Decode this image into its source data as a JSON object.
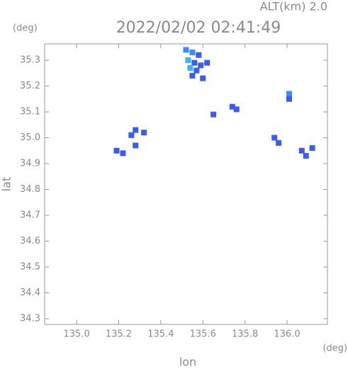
{
  "chart_data": {
    "type": "map",
    "title": "2022/02/02 02:41:49",
    "subtitle": "ALT(km) 2.0",
    "xlabel": "lon",
    "ylabel": "lat",
    "xunit": "(deg)",
    "yunit": "(deg)",
    "xlim": [
      134.848,
      136.192
    ],
    "ylim": [
      34.278,
      35.363
    ],
    "xticks": [
      {
        "value": 135.0,
        "label": "135.0"
      },
      135.2,
      135.4,
      135.6,
      135.8,
      {
        "value": 136.0,
        "label": "136.0"
      }
    ],
    "yticks": [
      34.3,
      34.4,
      34.5,
      34.6,
      34.7,
      34.8,
      34.9,
      {
        "value": 35.0,
        "label": "35.0"
      },
      35.1,
      35.2,
      35.3
    ],
    "x": [
      135.52,
      135.55,
      135.58,
      135.53,
      135.56,
      135.59,
      135.54,
      135.57,
      135.55,
      135.6,
      135.62,
      135.74,
      135.76,
      135.65,
      136.01,
      136.01,
      135.94,
      135.96,
      136.07,
      136.09,
      136.12,
      135.28,
      135.32,
      135.26,
      135.19,
      135.22,
      135.28
    ],
    "values": [
      35.34,
      35.33,
      35.32,
      35.3,
      35.29,
      35.28,
      35.27,
      35.26,
      35.24,
      35.23,
      35.29,
      35.12,
      35.11,
      35.09,
      35.17,
      35.15,
      35.0,
      34.98,
      34.95,
      34.93,
      34.96,
      35.03,
      35.02,
      35.01,
      34.95,
      34.94,
      34.97
    ],
    "colors": [
      "#3b8df5",
      "#3b8df5",
      "#3b5cf0",
      "#39b4f2",
      "#3b5cf0",
      "#3b5cf0",
      "#39b4f2",
      "#3b5cf0",
      "#3b5cf0",
      "#3b5cf0",
      "#3b5cf0",
      "#3b5cf0",
      "#3b5cf0",
      "#3b5cf0",
      "#3b8df5",
      "#3b5cf0",
      "#3b5cf0",
      "#3b5cf0",
      "#3b5cf0",
      "#3b5cf0",
      "#3b5cf0",
      "#3b5cf0",
      "#3b5cf0",
      "#3b5cf0",
      "#3b5cf0",
      "#3b5cf0",
      "#3b5cf0"
    ]
  }
}
